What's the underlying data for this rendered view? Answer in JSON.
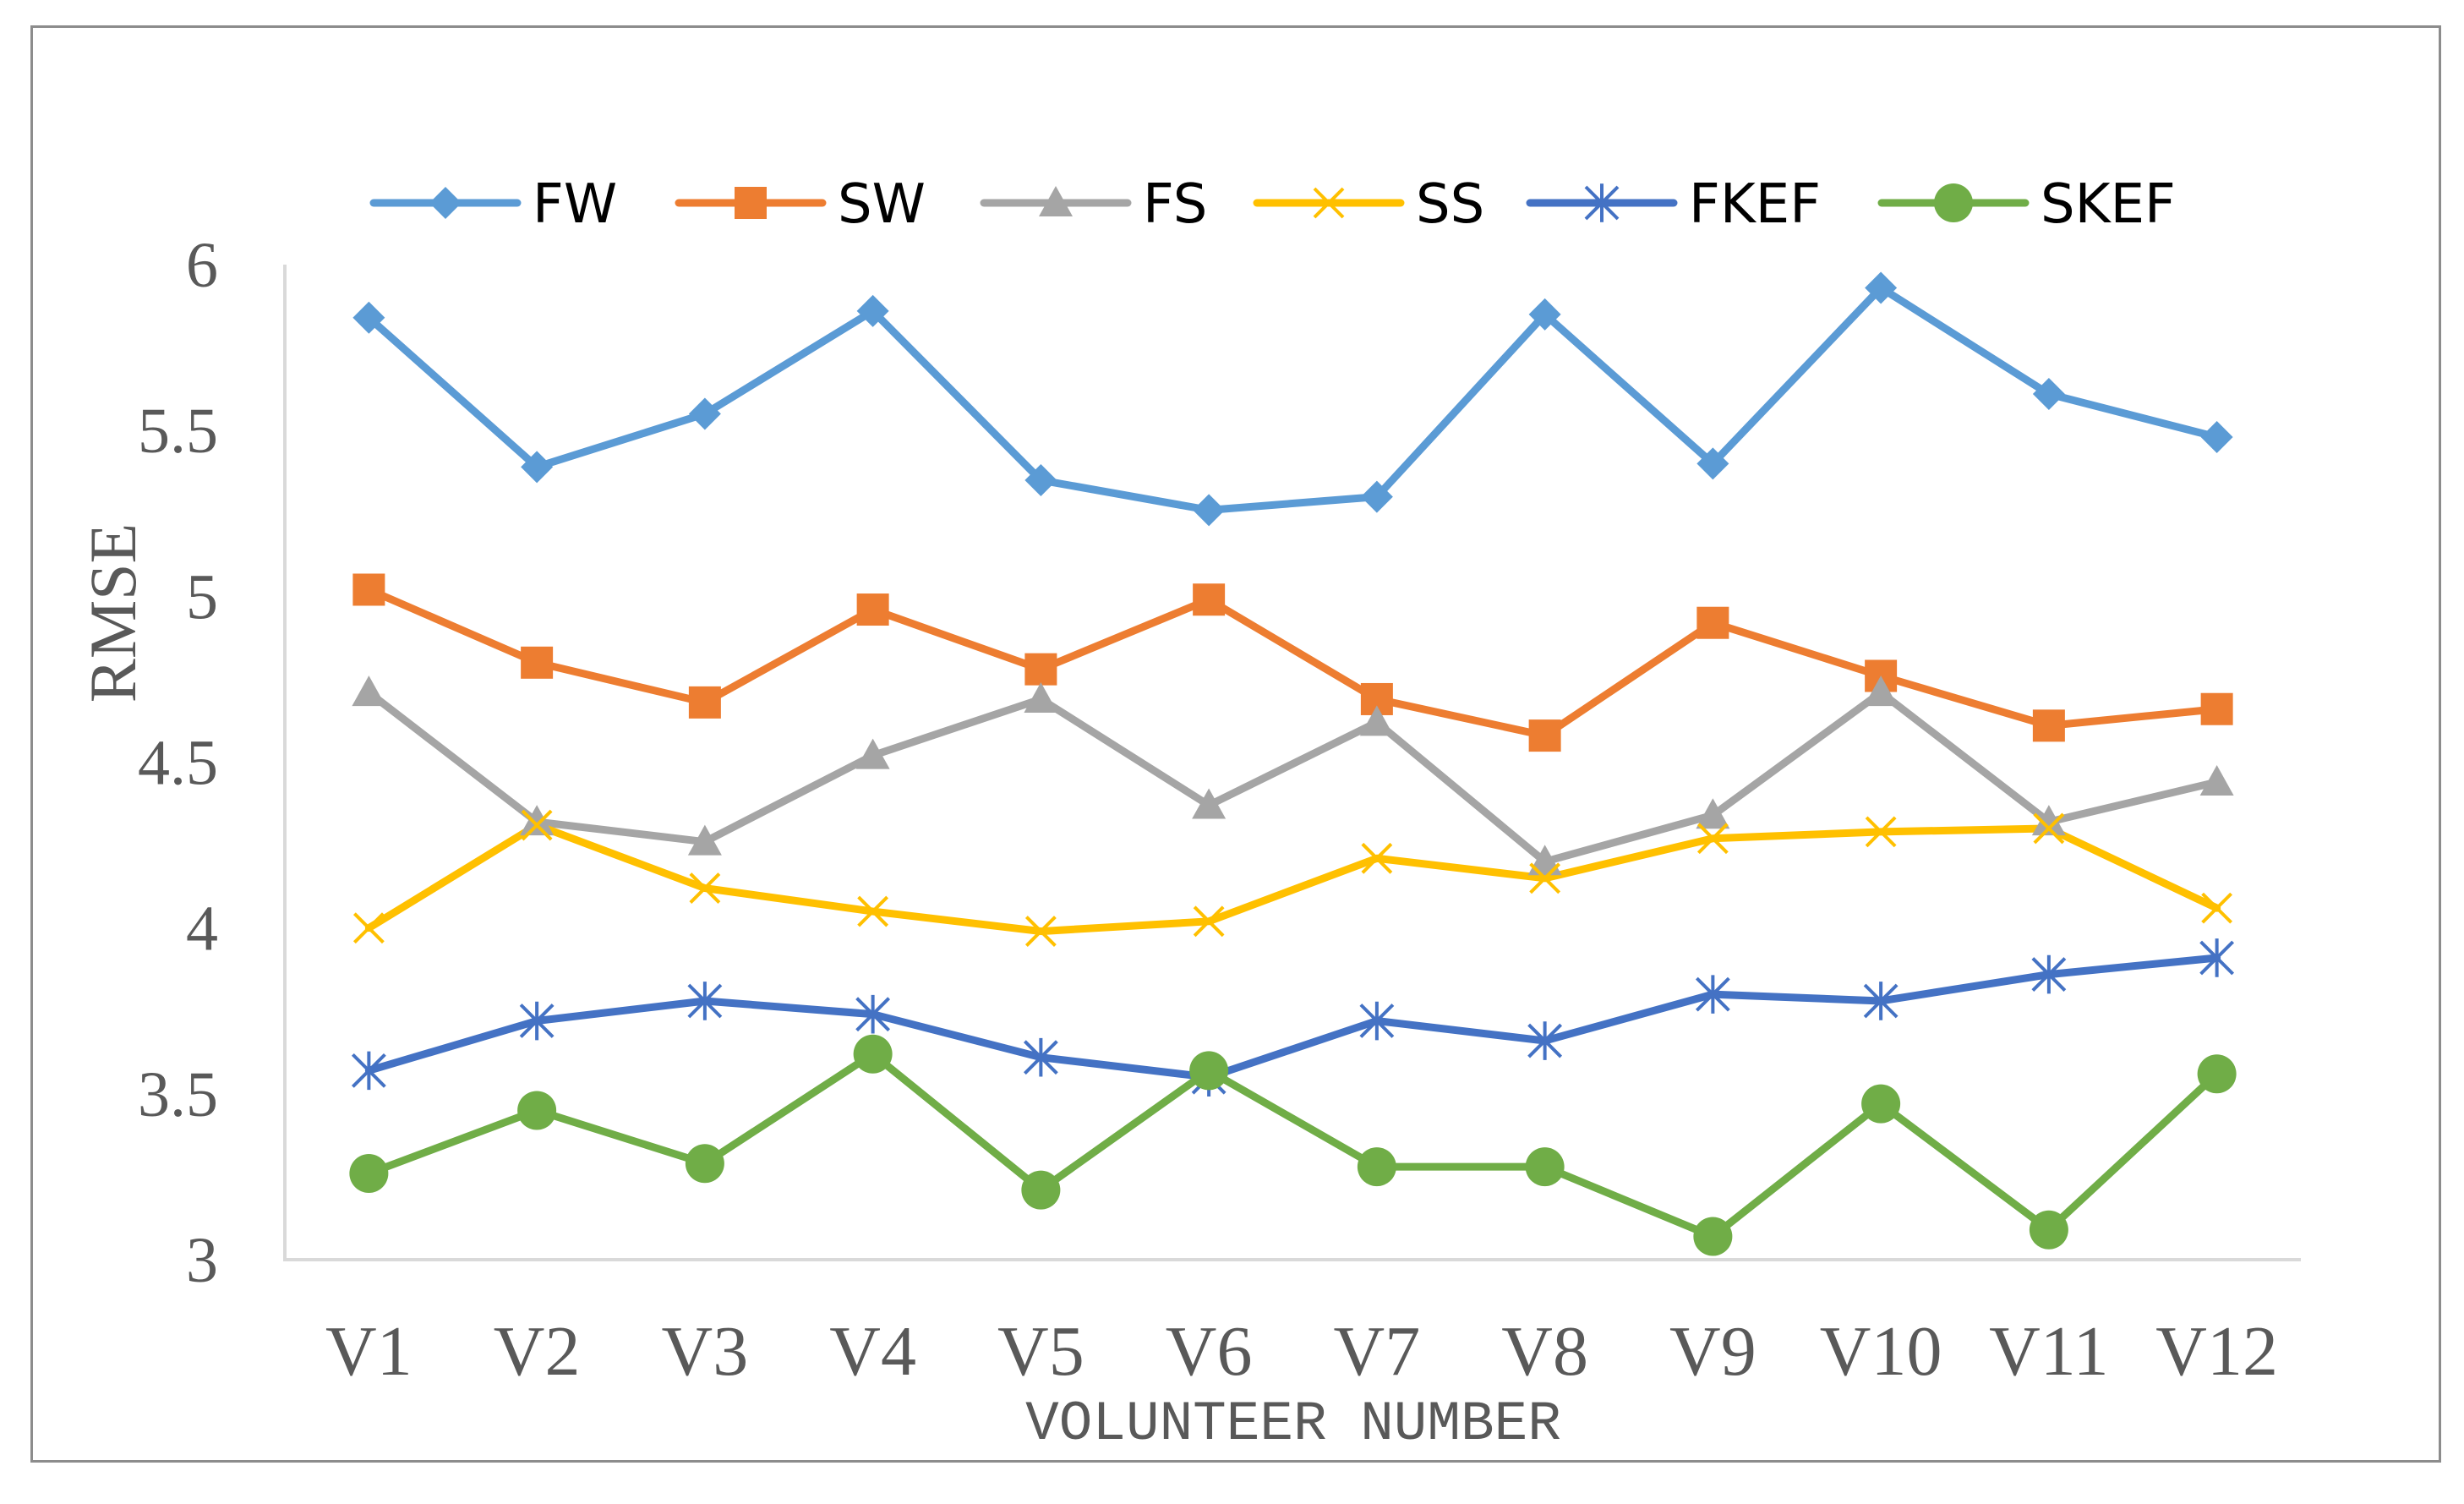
{
  "chart_data": {
    "type": "line",
    "title": "",
    "xlabel": "VOLUNTEER NUMBER",
    "ylabel": "RMSE",
    "ylim": [
      3,
      6
    ],
    "yticks": [
      "3",
      "3.5",
      "4",
      "4.5",
      "5",
      "5.5",
      "6"
    ],
    "categories": [
      "V1",
      "V2",
      "V3",
      "V4",
      "V5",
      "V6",
      "V7",
      "V8",
      "V9",
      "V10",
      "V11",
      "V12"
    ],
    "grid": false,
    "legend_position": "top",
    "series": [
      {
        "name": "FW",
        "color": "#5b9bd5",
        "marker": "diamond",
        "values": [
          5.84,
          5.39,
          5.55,
          5.86,
          5.35,
          5.26,
          5.3,
          5.85,
          5.4,
          5.93,
          5.61,
          5.48
        ]
      },
      {
        "name": "SW",
        "color": "#ed7d31",
        "marker": "square",
        "values": [
          5.02,
          4.8,
          4.68,
          4.96,
          4.78,
          4.99,
          4.69,
          4.58,
          4.92,
          4.76,
          4.61,
          4.66
        ]
      },
      {
        "name": "FS",
        "color": "#a5a5a5",
        "marker": "triangle",
        "values": [
          4.71,
          4.32,
          4.26,
          4.52,
          4.69,
          4.37,
          4.62,
          4.2,
          4.34,
          4.71,
          4.32,
          4.44
        ]
      },
      {
        "name": "SS",
        "color": "#ffc000",
        "marker": "x",
        "values": [
          4.0,
          4.31,
          4.12,
          4.05,
          3.99,
          4.02,
          4.21,
          4.15,
          4.27,
          4.29,
          4.3,
          4.06
        ]
      },
      {
        "name": "FKEF",
        "color": "#4472c4",
        "marker": "star",
        "values": [
          3.57,
          3.72,
          3.78,
          3.74,
          3.61,
          3.55,
          3.72,
          3.66,
          3.8,
          3.78,
          3.86,
          3.91
        ]
      },
      {
        "name": "SKEF",
        "color": "#70ad47",
        "marker": "circle",
        "values": [
          3.26,
          3.45,
          3.29,
          3.62,
          3.21,
          3.57,
          3.28,
          3.28,
          3.07,
          3.47,
          3.09,
          3.56
        ]
      }
    ]
  }
}
